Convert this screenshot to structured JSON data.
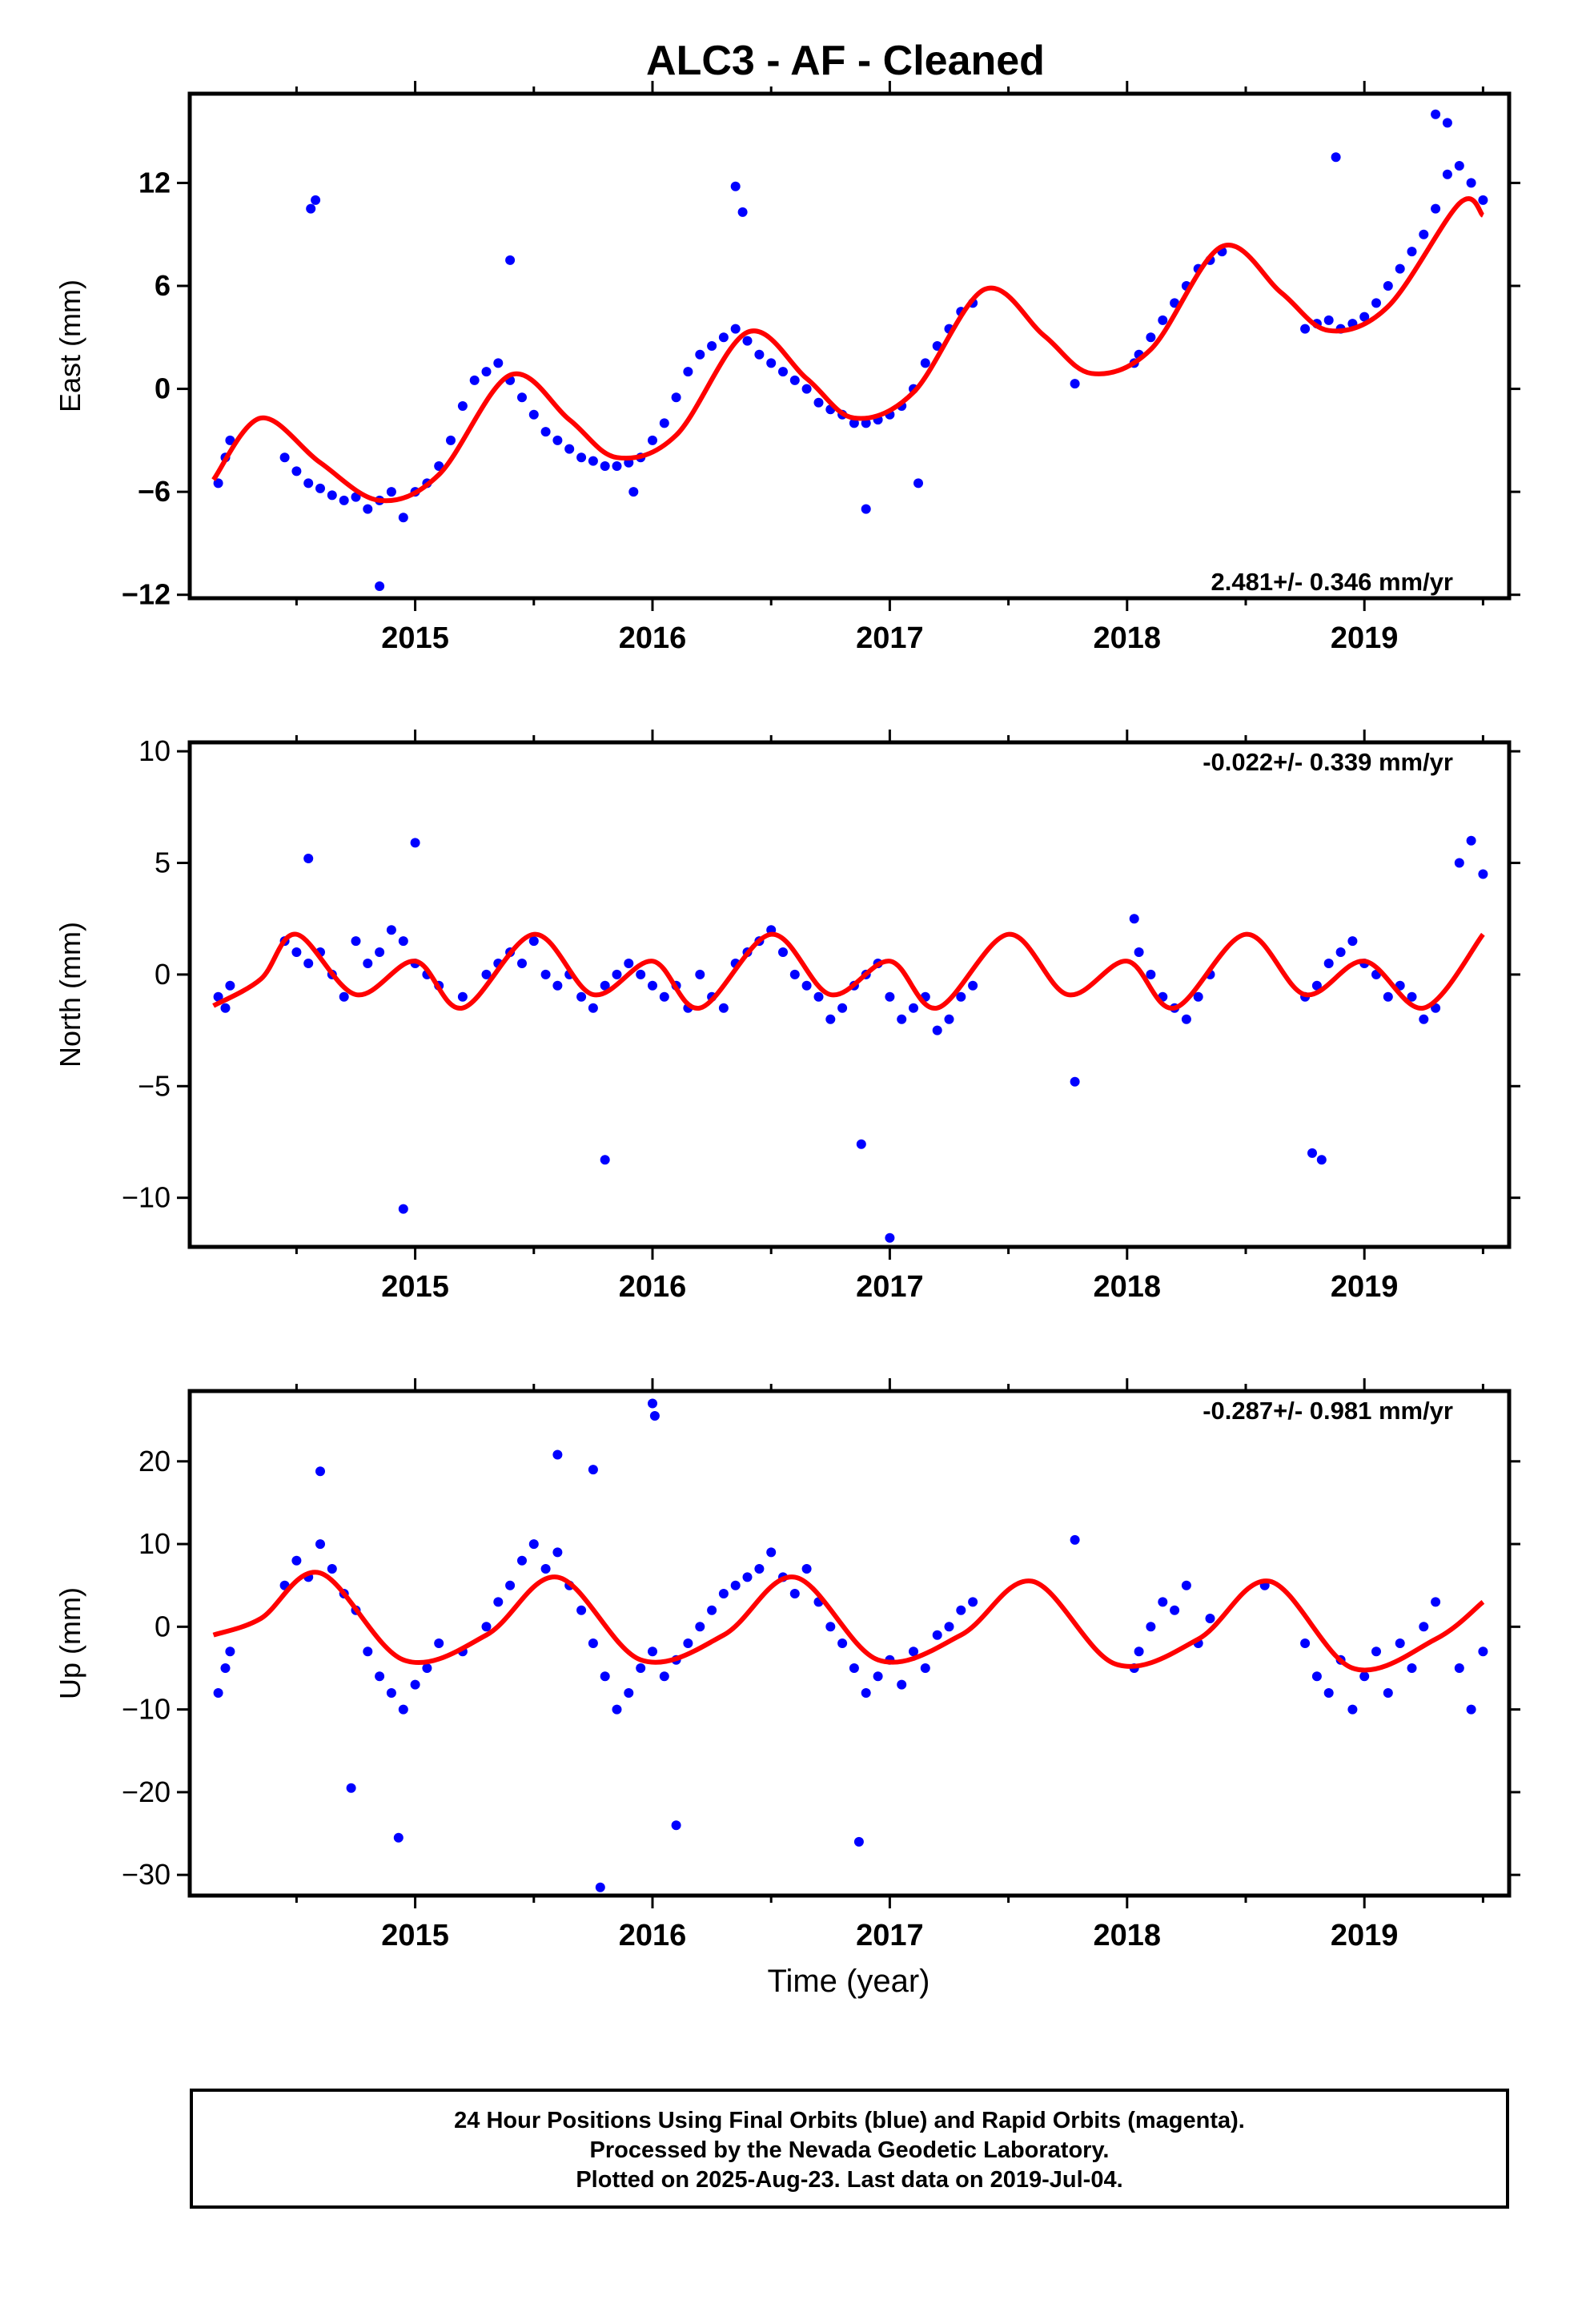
{
  "figure": {
    "title": "ALC3  - AF - Cleaned",
    "xlabel": "Time (year)",
    "x_tick_labels": [
      "2015",
      "2016",
      "2017",
      "2018",
      "2019"
    ],
    "colors": {
      "data": "#0000ff",
      "model": "#ff0000",
      "axes": "#000000"
    },
    "caption_lines": [
      "24 Hour Positions Using Final Orbits (blue) and Rapid Orbits (magenta).",
      "Processed by the Nevada Geodetic Laboratory.",
      "Plotted on 2025-Aug-23. Last data on 2019-Jul-04."
    ]
  },
  "chart_data": [
    {
      "type": "scatter",
      "ylabel": "East (mm)",
      "xlim": [
        2014.05,
        2019.61
      ],
      "ylim": [
        -12.2,
        17.2
      ],
      "yticks": [
        -12,
        -6,
        0,
        6,
        12
      ],
      "xticks": [
        2015,
        2016,
        2017,
        2018,
        2019
      ],
      "velocity_label": "2.481+/- 0.346 mm/yr",
      "legend_position": "bottom-right",
      "model_curve": {
        "x": [
          2014.15,
          2014.35,
          2014.6,
          2014.85,
          2015.1,
          2015.4,
          2015.65,
          2015.85,
          2016.1,
          2016.4,
          2016.65,
          2016.85,
          2017.1,
          2017.4,
          2017.65,
          2017.85,
          2018.1,
          2018.4,
          2018.65,
          2018.85,
          2019.1,
          2019.4,
          2019.5
        ],
        "y": [
          -5.3,
          -1.7,
          -4.3,
          -6.5,
          -5.0,
          0.8,
          -1.8,
          -4.0,
          -2.7,
          3.3,
          0.6,
          -1.7,
          -0.2,
          5.8,
          3.1,
          0.9,
          2.3,
          8.3,
          5.6,
          3.4,
          4.8,
          10.8,
          10.1
        ]
      },
      "observations": {
        "x": [
          2014.17,
          2014.2,
          2014.22,
          2014.45,
          2014.5,
          2014.55,
          2014.6,
          2014.65,
          2014.7,
          2014.75,
          2014.8,
          2014.85,
          2014.9,
          2014.95,
          2015.0,
          2015.05,
          2015.1,
          2015.15,
          2015.2,
          2015.25,
          2015.3,
          2015.35,
          2015.4,
          2015.45,
          2015.5,
          2015.55,
          2015.6,
          2015.65,
          2015.7,
          2015.75,
          2015.8,
          2015.85,
          2015.9,
          2015.95,
          2016.0,
          2016.05,
          2016.1,
          2016.15,
          2016.2,
          2016.25,
          2016.3,
          2016.35,
          2016.4,
          2016.45,
          2016.5,
          2016.55,
          2016.6,
          2016.65,
          2016.7,
          2016.75,
          2016.8,
          2016.85,
          2016.9,
          2016.95,
          2017.0,
          2017.05,
          2017.1,
          2017.15,
          2017.2,
          2017.25,
          2017.3,
          2017.35,
          2017.78,
          2018.03,
          2018.05,
          2018.1,
          2018.15,
          2018.2,
          2018.25,
          2018.3,
          2018.35,
          2018.4,
          2018.75,
          2018.8,
          2018.85,
          2018.9,
          2018.95,
          2019.0,
          2019.05,
          2019.1,
          2019.15,
          2019.2,
          2019.25,
          2019.3,
          2019.35,
          2019.4,
          2019.45,
          2019.5,
          2014.56,
          2014.58,
          2015.4,
          2016.35,
          2016.38,
          2014.85,
          2015.92,
          2019.3,
          2019.35,
          2018.88,
          2016.9,
          2017.12
        ],
        "y": [
          -5.5,
          -4.0,
          -3.0,
          -4.0,
          -4.8,
          -5.5,
          -5.8,
          -6.2,
          -6.5,
          -6.3,
          -7.0,
          -6.5,
          -6.0,
          -7.5,
          -6.0,
          -5.5,
          -4.5,
          -3.0,
          -1.0,
          0.5,
          1.0,
          1.5,
          0.5,
          -0.5,
          -1.5,
          -2.5,
          -3.0,
          -3.5,
          -4.0,
          -4.2,
          -4.5,
          -4.5,
          -4.3,
          -4.0,
          -3.0,
          -2.0,
          -0.5,
          1.0,
          2.0,
          2.5,
          3.0,
          3.5,
          2.8,
          2.0,
          1.5,
          1.0,
          0.5,
          0.0,
          -0.8,
          -1.2,
          -1.5,
          -2.0,
          -2.0,
          -1.8,
          -1.5,
          -1.0,
          0.0,
          1.5,
          2.5,
          3.5,
          4.5,
          5.0,
          0.3,
          1.5,
          2.0,
          3.0,
          4.0,
          5.0,
          6.0,
          7.0,
          7.5,
          8.0,
          3.5,
          3.8,
          4.0,
          3.5,
          3.8,
          4.2,
          5.0,
          6.0,
          7.0,
          8.0,
          9.0,
          10.5,
          12.5,
          13.0,
          12.0,
          11.0,
          10.5,
          11.0,
          7.5,
          11.8,
          10.3,
          -11.5,
          -6.0,
          16.0,
          15.5,
          13.5,
          -7.0,
          -5.5
        ]
      }
    },
    {
      "type": "scatter",
      "ylabel": "North (mm)",
      "xlim": [
        2014.05,
        2019.61
      ],
      "ylim": [
        -12.2,
        10.4
      ],
      "yticks": [
        -10,
        -5,
        0,
        5,
        10
      ],
      "xticks": [
        2015,
        2016,
        2017,
        2018,
        2019
      ],
      "velocity_label": "-0.022+/- 0.339 mm/yr",
      "legend_position": "top-right",
      "model_curve": {
        "x": [
          2014.15,
          2014.35,
          2014.5,
          2014.75,
          2015.0,
          2015.2,
          2015.5,
          2015.75,
          2016.0,
          2016.2,
          2016.5,
          2016.75,
          2017.0,
          2017.2,
          2017.5,
          2017.75,
          2018.0,
          2018.2,
          2018.5,
          2018.75,
          2019.0,
          2019.25,
          2019.5
        ],
        "y": [
          -1.4,
          -0.2,
          1.8,
          -0.9,
          0.6,
          -1.5,
          1.8,
          -0.9,
          0.6,
          -1.5,
          1.8,
          -0.9,
          0.6,
          -1.5,
          1.8,
          -0.9,
          0.6,
          -1.5,
          1.8,
          -0.9,
          0.6,
          -1.5,
          1.8
        ]
      },
      "observations": {
        "x": [
          2014.17,
          2014.2,
          2014.22,
          2014.45,
          2014.5,
          2014.55,
          2014.6,
          2014.65,
          2014.7,
          2014.75,
          2014.8,
          2014.85,
          2014.9,
          2014.95,
          2015.0,
          2015.05,
          2015.1,
          2015.2,
          2015.3,
          2015.35,
          2015.4,
          2015.45,
          2015.5,
          2015.55,
          2015.6,
          2015.65,
          2015.7,
          2015.75,
          2015.8,
          2015.85,
          2015.9,
          2015.95,
          2016.0,
          2016.05,
          2016.1,
          2016.15,
          2016.2,
          2016.25,
          2016.3,
          2016.35,
          2016.4,
          2016.45,
          2016.5,
          2016.55,
          2016.6,
          2016.65,
          2016.7,
          2016.75,
          2016.8,
          2016.85,
          2016.9,
          2016.95,
          2017.0,
          2017.05,
          2017.1,
          2017.15,
          2017.2,
          2017.25,
          2017.3,
          2017.35,
          2017.78,
          2018.03,
          2018.05,
          2018.1,
          2018.15,
          2018.2,
          2018.25,
          2018.3,
          2018.35,
          2018.75,
          2018.8,
          2018.85,
          2018.9,
          2018.95,
          2019.0,
          2019.05,
          2019.1,
          2019.15,
          2019.2,
          2019.25,
          2019.3,
          2019.4,
          2019.45,
          2019.5,
          2014.95,
          2015.8,
          2016.88,
          2017.0,
          2018.78,
          2018.82,
          2014.55,
          2015.0
        ],
        "y": [
          -1.0,
          -1.5,
          -0.5,
          1.5,
          1.0,
          0.5,
          1.0,
          0.0,
          -1.0,
          1.5,
          0.5,
          1.0,
          2.0,
          1.5,
          0.5,
          0.0,
          -0.5,
          -1.0,
          0.0,
          0.5,
          1.0,
          0.5,
          1.5,
          0.0,
          -0.5,
          0.0,
          -1.0,
          -1.5,
          -0.5,
          0.0,
          0.5,
          0.0,
          -0.5,
          -1.0,
          -0.5,
          -1.5,
          0.0,
          -1.0,
          -1.5,
          0.5,
          1.0,
          1.5,
          2.0,
          1.0,
          0.0,
          -0.5,
          -1.0,
          -2.0,
          -1.5,
          -0.5,
          0.0,
          0.5,
          -1.0,
          -2.0,
          -1.5,
          -1.0,
          -2.5,
          -2.0,
          -1.0,
          -0.5,
          -4.8,
          2.5,
          1.0,
          0.0,
          -1.0,
          -1.5,
          -2.0,
          -1.0,
          0.0,
          -1.0,
          -0.5,
          0.5,
          1.0,
          1.5,
          0.5,
          0.0,
          -1.0,
          -0.5,
          -1.0,
          -2.0,
          -1.5,
          5.0,
          6.0,
          4.5,
          -10.5,
          -8.3,
          -7.6,
          -11.8,
          -8.0,
          -8.3,
          5.2,
          5.9
        ]
      }
    },
    {
      "type": "scatter",
      "ylabel": "Up (mm)",
      "xlim": [
        2014.05,
        2019.61
      ],
      "ylim": [
        -32.5,
        28.5
      ],
      "yticks": [
        -30,
        -20,
        -10,
        0,
        10,
        20
      ],
      "xticks": [
        2015,
        2016,
        2017,
        2018,
        2019
      ],
      "velocity_label": "-0.287+/- 0.981 mm/yr",
      "legend_position": "top-right",
      "model_curve": {
        "x": [
          2014.15,
          2014.35,
          2014.6,
          2014.95,
          2015.3,
          2015.6,
          2015.95,
          2016.3,
          2016.6,
          2016.95,
          2017.3,
          2017.6,
          2017.95,
          2018.3,
          2018.6,
          2018.95,
          2019.3,
          2019.5
        ],
        "y": [
          -1.0,
          1.0,
          6.5,
          -4.0,
          -1.0,
          6.0,
          -4.0,
          -1.0,
          6.0,
          -4.0,
          -1.0,
          5.5,
          -4.5,
          -1.5,
          5.5,
          -5.0,
          -1.5,
          3.0
        ]
      },
      "observations": {
        "x": [
          2014.17,
          2014.2,
          2014.22,
          2014.45,
          2014.5,
          2014.55,
          2014.6,
          2014.65,
          2014.7,
          2014.75,
          2014.8,
          2014.85,
          2014.9,
          2014.95,
          2015.0,
          2015.05,
          2015.1,
          2015.2,
          2015.3,
          2015.35,
          2015.4,
          2015.45,
          2015.5,
          2015.55,
          2015.6,
          2015.65,
          2015.7,
          2015.75,
          2015.8,
          2015.85,
          2015.9,
          2015.95,
          2016.0,
          2016.05,
          2016.1,
          2016.15,
          2016.2,
          2016.25,
          2016.3,
          2016.35,
          2016.4,
          2016.45,
          2016.5,
          2016.55,
          2016.6,
          2016.65,
          2016.7,
          2016.75,
          2016.8,
          2016.85,
          2016.9,
          2016.95,
          2017.0,
          2017.05,
          2017.1,
          2017.15,
          2017.2,
          2017.25,
          2017.3,
          2017.35,
          2017.78,
          2018.03,
          2018.05,
          2018.1,
          2018.15,
          2018.2,
          2018.25,
          2018.3,
          2018.35,
          2018.58,
          2018.75,
          2018.8,
          2018.85,
          2018.9,
          2018.95,
          2019.0,
          2019.05,
          2019.1,
          2019.15,
          2019.2,
          2019.25,
          2019.3,
          2019.4,
          2019.45,
          2019.5,
          2016.0,
          2016.01,
          2015.78,
          2014.93,
          2016.87,
          2014.6,
          2015.6,
          2015.75,
          2016.1,
          2014.73
        ],
        "y": [
          -8.0,
          -5.0,
          -3.0,
          5.0,
          8.0,
          6.0,
          10.0,
          7.0,
          4.0,
          2.0,
          -3.0,
          -6.0,
          -8.0,
          -10.0,
          -7.0,
          -5.0,
          -2.0,
          -3.0,
          0.0,
          3.0,
          5.0,
          8.0,
          10.0,
          7.0,
          9.0,
          5.0,
          2.0,
          -2.0,
          -6.0,
          -10.0,
          -8.0,
          -5.0,
          -3.0,
          -6.0,
          -4.0,
          -2.0,
          0.0,
          2.0,
          4.0,
          5.0,
          6.0,
          7.0,
          9.0,
          6.0,
          4.0,
          7.0,
          3.0,
          0.0,
          -2.0,
          -5.0,
          -8.0,
          -6.0,
          -4.0,
          -7.0,
          -3.0,
          -5.0,
          -1.0,
          0.0,
          2.0,
          3.0,
          10.5,
          -5.0,
          -3.0,
          0.0,
          3.0,
          2.0,
          5.0,
          -2.0,
          1.0,
          5.0,
          -2.0,
          -6.0,
          -8.0,
          -4.0,
          -10.0,
          -6.0,
          -3.0,
          -8.0,
          -2.0,
          -5.0,
          0.0,
          3.0,
          -5.0,
          -10.0,
          -3.0,
          27.0,
          25.5,
          -31.5,
          -25.5,
          -26.0,
          18.8,
          20.8,
          19.0,
          -24.0,
          -19.5
        ]
      }
    }
  ]
}
